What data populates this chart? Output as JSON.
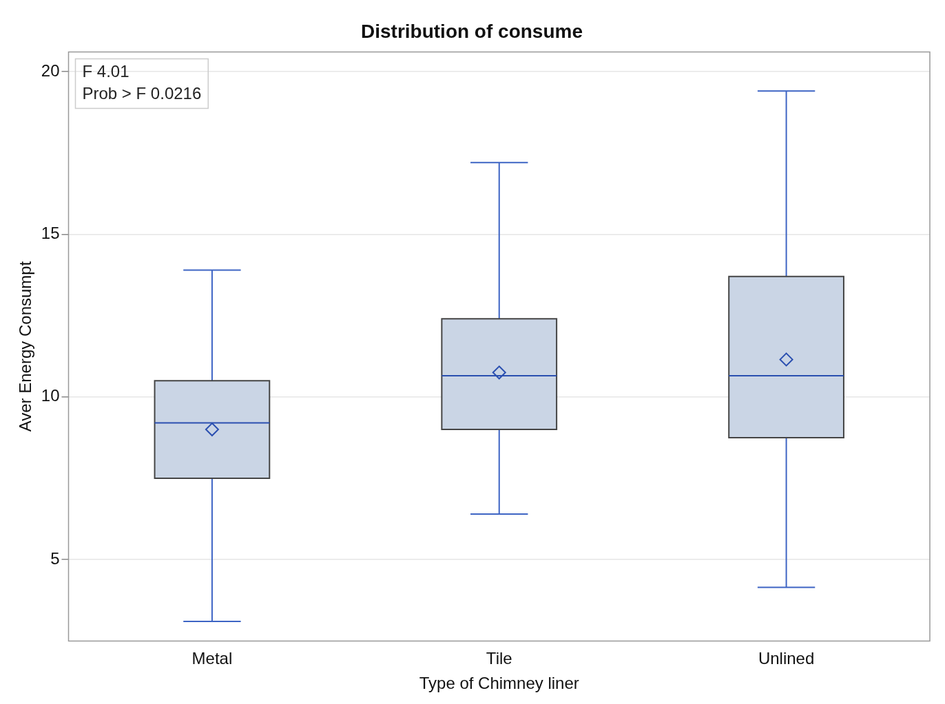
{
  "chart_data": {
    "type": "box",
    "title": "Distribution of consume",
    "xlabel": "Type of Chimney liner",
    "ylabel": "Aver Energy Consumpt",
    "categories": [
      "Metal",
      "Tile",
      "Unlined"
    ],
    "boxes": [
      {
        "low": 3.1,
        "q1": 7.5,
        "median": 9.2,
        "q3": 10.5,
        "high": 13.9,
        "mean": 9.0
      },
      {
        "low": 6.4,
        "q1": 9.0,
        "median": 10.65,
        "q3": 12.4,
        "high": 17.2,
        "mean": 10.75
      },
      {
        "low": 4.15,
        "q1": 8.75,
        "median": 10.65,
        "q3": 13.7,
        "high": 19.4,
        "mean": 11.15
      }
    ],
    "color": "#cad5e5",
    "marker": "diamond",
    "ylim": [
      2.5,
      20.6
    ],
    "yticks": [
      5,
      10,
      15,
      20
    ],
    "grid": "y",
    "annotations": [
      "F 4.01",
      "Prob > F 0.0216"
    ]
  }
}
